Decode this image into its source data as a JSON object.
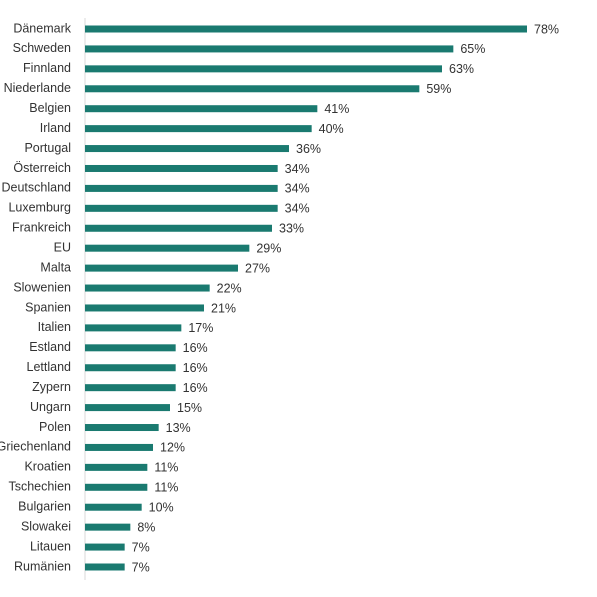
{
  "chart_data": {
    "type": "barh",
    "categories": [
      "Dänemark",
      "Schweden",
      "Finnland",
      "Niederlande",
      "Belgien",
      "Irland",
      "Portugal",
      "Österreich",
      "Deutschland",
      "Luxemburg",
      "Frankreich",
      "EU",
      "Malta",
      "Slowenien",
      "Spanien",
      "Italien",
      "Estland",
      "Lettland",
      "Zypern",
      "Ungarn",
      "Polen",
      "Griechenland",
      "Kroatien",
      "Tschechien",
      "Bulgarien",
      "Slowakei",
      "Litauen",
      "Rumänien"
    ],
    "values": [
      78,
      65,
      63,
      59,
      41,
      40,
      36,
      34,
      34,
      34,
      33,
      29,
      27,
      22,
      21,
      17,
      16,
      16,
      16,
      15,
      13,
      12,
      11,
      11,
      10,
      8,
      7,
      7
    ],
    "value_labels": [
      "78%",
      "65%",
      "63%",
      "59%",
      "41%",
      "40%",
      "36%",
      "34%",
      "34%",
      "34%",
      "33%",
      "29%",
      "27%",
      "22%",
      "21%",
      "17%",
      "16%",
      "16%",
      "16%",
      "15%",
      "13%",
      "12%",
      "11%",
      "11%",
      "10%",
      "8%",
      "7%",
      "7%"
    ],
    "color": "#1a7a70",
    "xlim": [
      0,
      90
    ]
  }
}
